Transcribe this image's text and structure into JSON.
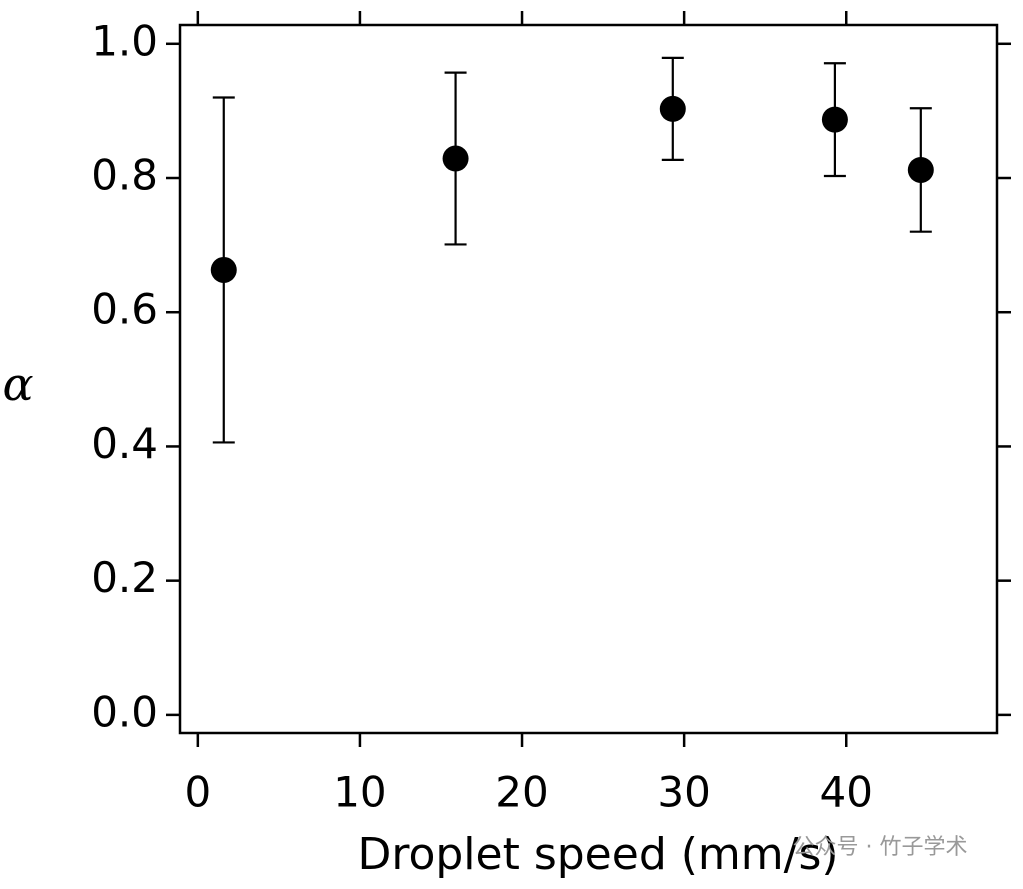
{
  "chart_data": {
    "type": "scatter",
    "x_label": "Droplet speed (mm/s)",
    "y_label": "α",
    "x": [
      1.6,
      15.9,
      29.3,
      39.3,
      44.6
    ],
    "series": [
      {
        "color": "#000000",
        "values": [
          0.663,
          0.829,
          0.903,
          0.887,
          0.812
        ],
        "errors": [
          0.257,
          0.128,
          0.076,
          0.084,
          0.092
        ]
      }
    ],
    "xlim": [
      -1.1,
      49.3
    ],
    "ylim": [
      -0.027,
      1.028
    ],
    "xticks": [
      0,
      10,
      20,
      30,
      40
    ],
    "yticks": [
      {
        "value": 0,
        "label": "0.0"
      },
      0.2,
      0.4,
      0.6,
      0.8,
      {
        "value": 1,
        "label": "1.0"
      }
    ],
    "mirror_ticks": true,
    "grid": false,
    "watermark": "公众号 · 竹子学术"
  }
}
